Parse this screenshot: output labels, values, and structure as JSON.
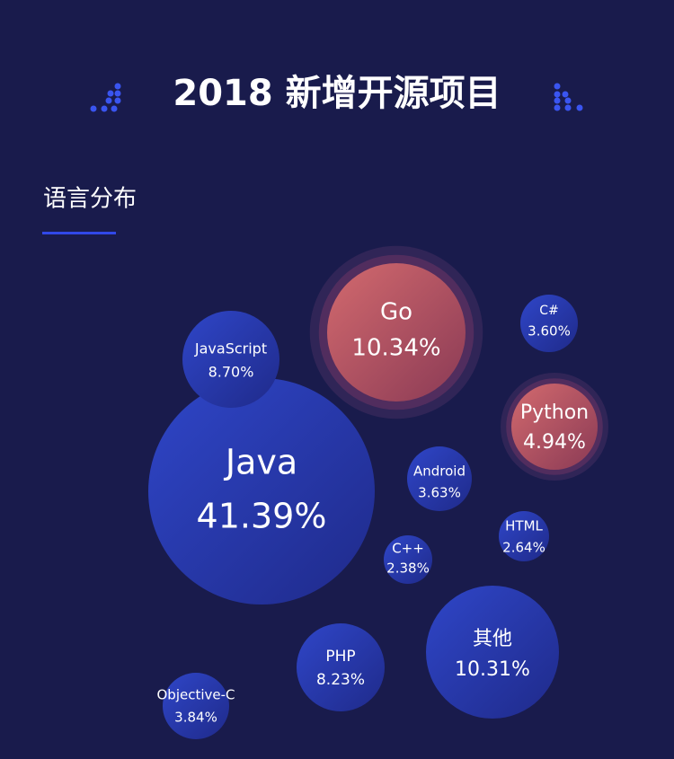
{
  "chart_data": {
    "type": "bubble",
    "title": "2018 新增开源项目",
    "subtitle": "语言分布",
    "categories": [
      "Java",
      "Go",
      "JavaScript",
      "C#",
      "Python",
      "Android",
      "HTML",
      "C++",
      "其他",
      "PHP",
      "Objective-C"
    ],
    "values": [
      41.39,
      10.34,
      8.7,
      3.6,
      4.94,
      3.63,
      2.64,
      2.38,
      10.31,
      8.23,
      3.84
    ],
    "value_labels": [
      "41.39%",
      "10.34%",
      "8.70%",
      "3.60%",
      "4.94%",
      "3.63%",
      "2.64%",
      "2.38%",
      "10.31%",
      "8.23%",
      "3.84%"
    ]
  }
}
